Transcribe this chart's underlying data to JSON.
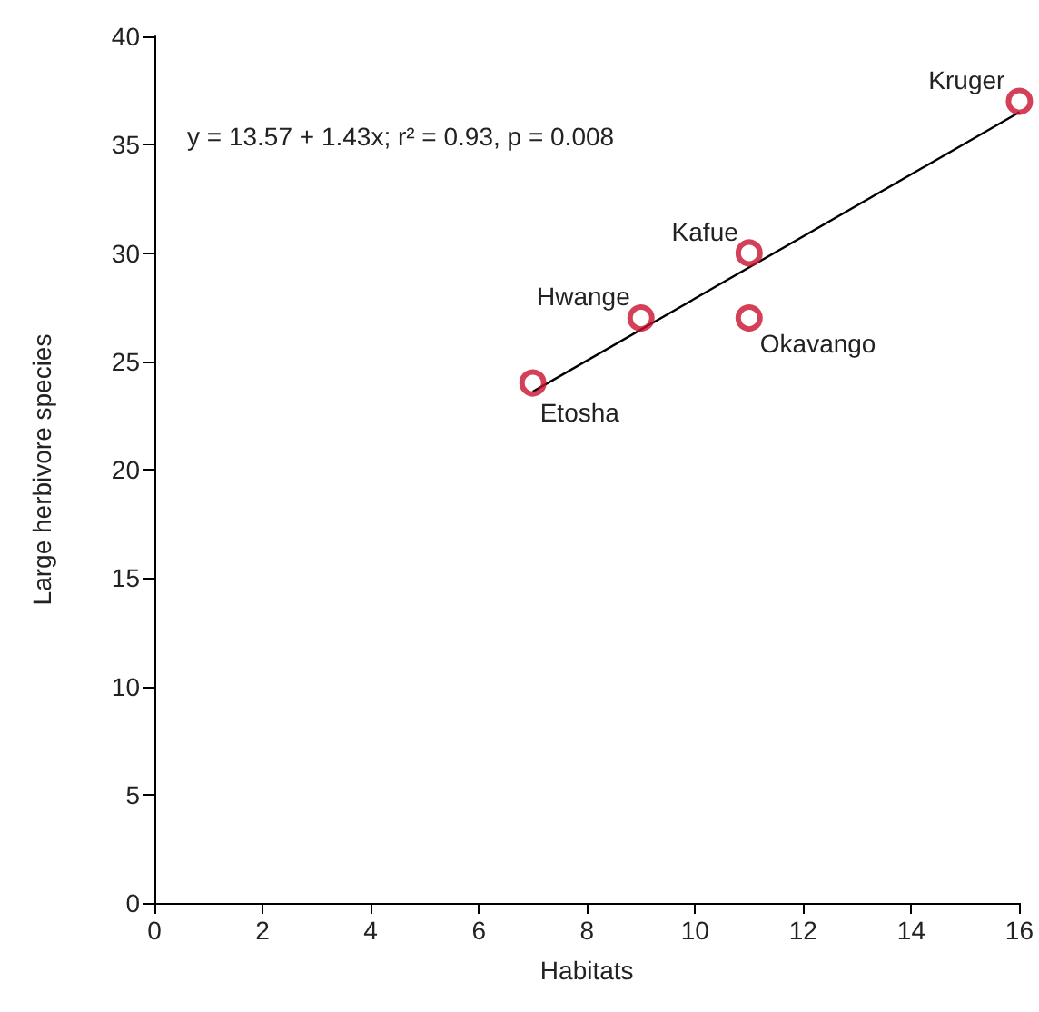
{
  "chart_data": {
    "type": "scatter",
    "xlabel": "Habitats",
    "ylabel": "Large herbivore species",
    "x": [
      7,
      9,
      11,
      11,
      16
    ],
    "series": [
      {
        "color": "#c8102e",
        "values": [
          24,
          27,
          30,
          27,
          37
        ]
      },
      {
        "type": "line",
        "x": [
          7,
          16
        ],
        "values": [
          23.6,
          36.5
        ],
        "color": "#000000",
        "marker": "none"
      }
    ],
    "marker": "circle",
    "grid": false,
    "xlim": [
      0,
      16
    ],
    "xticks": [
      0,
      2,
      4,
      6,
      8,
      10,
      12,
      14,
      16
    ],
    "ylim": [
      0,
      40
    ],
    "yticks": [
      0,
      5,
      10,
      15,
      20,
      25,
      30,
      35,
      40
    ],
    "annotations": [
      "y = 13.57 + 1.43x; r² = 0.93, p = 0.008",
      {
        "text": "Etosha",
        "x": 7,
        "y": 24
      },
      {
        "text": "Hwange",
        "x": 9,
        "y": 27
      },
      {
        "text": "Kafue",
        "x": 11,
        "y": 30
      },
      {
        "text": "Okavango",
        "x": 11,
        "y": 27
      },
      {
        "text": "Kruger",
        "x": 16,
        "y": 37
      }
    ]
  }
}
